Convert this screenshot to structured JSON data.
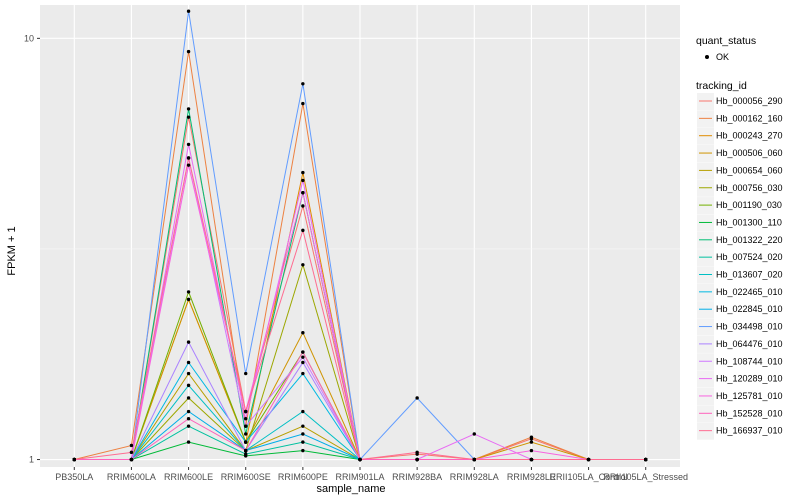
{
  "chart_data": {
    "type": "line",
    "title": "",
    "xlabel": "sample_name",
    "ylabel": "FPKM + 1",
    "y_scale": "log10",
    "ylim": [
      0.96,
      12.0
    ],
    "y_ticks": [
      {
        "value": 1,
        "label": "1"
      },
      {
        "value": 10,
        "label": "10"
      }
    ],
    "categories": [
      "PB350LA",
      "RRIM600LA",
      "RRIM600LE",
      "RRIM600SE",
      "RRIM600PE",
      "RRIM901LA",
      "RRIM928BA",
      "RRIM928LA",
      "RRIM928LE",
      "RRII105LA_Control",
      "RRII105LA_Stressed"
    ],
    "background": "#ebebeb",
    "grid": true,
    "points_color": "#000000",
    "quant_status_legend": {
      "title": "quant_status",
      "label": "OK"
    },
    "series_legend_title": "tracking_id",
    "legend_position": "right",
    "series": [
      {
        "name": "Hb_000056_290",
        "color": "#f8766d",
        "values": [
          1,
          1,
          6.5,
          1.3,
          4.0,
          1,
          1.03,
          1,
          1.12,
          1,
          1
        ]
      },
      {
        "name": "Hb_000162_160",
        "color": "#ed8141",
        "values": [
          1,
          1.08,
          9.3,
          1.2,
          7.0,
          1,
          1,
          1,
          1.13,
          1,
          1
        ]
      },
      {
        "name": "Hb_000243_270",
        "color": "#e08b00",
        "values": [
          1,
          1,
          2.4,
          1.1,
          4.8,
          1,
          1,
          1,
          1,
          1,
          1
        ]
      },
      {
        "name": "Hb_000506_060",
        "color": "#cf9400",
        "values": [
          1,
          1,
          2.4,
          1.1,
          2.0,
          1,
          1,
          1,
          1.1,
          1,
          1
        ]
      },
      {
        "name": "Hb_000654_060",
        "color": "#b79f00",
        "values": [
          1,
          1,
          1.6,
          1.05,
          1.2,
          1,
          1,
          1,
          1,
          1,
          1
        ]
      },
      {
        "name": "Hb_000756_030",
        "color": "#9ca700",
        "values": [
          1,
          1,
          1.4,
          1.05,
          2.9,
          1,
          1,
          1,
          1,
          1,
          1
        ]
      },
      {
        "name": "Hb_001190_030",
        "color": "#72b000",
        "values": [
          1,
          1,
          2.5,
          1.1,
          1.8,
          1,
          1,
          1,
          1,
          1,
          1
        ]
      },
      {
        "name": "Hb_001300_110",
        "color": "#00ba38",
        "values": [
          1,
          1,
          1.1,
          1.02,
          1.05,
          1,
          1,
          1,
          1,
          1,
          1
        ]
      },
      {
        "name": "Hb_001322_220",
        "color": "#00bf74",
        "values": [
          1,
          1,
          6.8,
          1.15,
          4.3,
          1,
          1,
          1,
          1,
          1,
          1
        ]
      },
      {
        "name": "Hb_007524_020",
        "color": "#00c19f",
        "values": [
          1,
          1,
          1.2,
          1.03,
          1.1,
          1,
          1,
          1,
          1,
          1,
          1
        ]
      },
      {
        "name": "Hb_013607_020",
        "color": "#00bfc4",
        "values": [
          1,
          1,
          1.5,
          1.05,
          1.3,
          1,
          1,
          1,
          1,
          1,
          1
        ]
      },
      {
        "name": "Hb_022465_010",
        "color": "#00b9e3",
        "values": [
          1,
          1,
          1.7,
          1.1,
          1.6,
          1,
          1,
          1,
          1,
          1,
          1
        ]
      },
      {
        "name": "Hb_022845_010",
        "color": "#00ade8",
        "values": [
          1,
          1,
          1.3,
          1.05,
          1.15,
          1,
          1,
          1,
          1,
          1,
          1
        ]
      },
      {
        "name": "Hb_034498_010",
        "color": "#619cff",
        "values": [
          1,
          1,
          11.6,
          1.6,
          7.8,
          1,
          1.4,
          1,
          1,
          1,
          1
        ]
      },
      {
        "name": "Hb_064476_010",
        "color": "#ab82ff",
        "values": [
          1,
          1,
          1.9,
          1.05,
          1.7,
          1,
          1,
          1,
          1,
          1,
          1
        ]
      },
      {
        "name": "Hb_108744_010",
        "color": "#cf78ff",
        "values": [
          1,
          1,
          5.2,
          1.2,
          1.75,
          1,
          1,
          1,
          1,
          1,
          1
        ]
      },
      {
        "name": "Hb_120289_010",
        "color": "#e86bf3",
        "values": [
          1,
          1,
          5.6,
          1.25,
          4.6,
          1,
          1,
          1.15,
          1,
          1,
          1
        ]
      },
      {
        "name": "Hb_125781_010",
        "color": "#f863df",
        "values": [
          1,
          1,
          5.0,
          1.3,
          4.3,
          1,
          1,
          1,
          1.05,
          1,
          1
        ]
      },
      {
        "name": "Hb_152528_010",
        "color": "#ff62bc",
        "values": [
          1,
          1,
          1.25,
          1.05,
          1.8,
          1,
          1,
          1,
          1,
          1,
          1
        ]
      },
      {
        "name": "Hb_166937_010",
        "color": "#ff6c91",
        "values": [
          1,
          1.04,
          5.2,
          1.3,
          3.5,
          1,
          1.04,
          1,
          1,
          1,
          1
        ]
      }
    ]
  }
}
